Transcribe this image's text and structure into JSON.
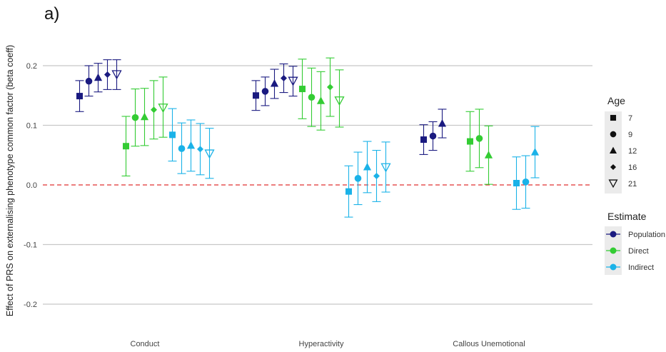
{
  "panel_label": "a)",
  "chart_data": {
    "type": "scatter",
    "title": "",
    "ylabel": "Effect of PRS on externalising phenotype common factor (beta coeff)",
    "xlabel": "",
    "categories": [
      "Conduct",
      "Hyperactivity",
      "Callous Unemotional"
    ],
    "ylim": [
      -0.22,
      0.25
    ],
    "yticks": [
      0.2,
      0.1,
      0.0,
      -0.1,
      -0.2
    ],
    "ytick_labels": [
      "0.2",
      "0.1",
      "0.0",
      "-0.1",
      "-0.2"
    ],
    "grid": "horizontal",
    "reference_line": {
      "y": 0.0,
      "color": "#e03030",
      "style": "dashed"
    },
    "legend_placement": "right",
    "ages": [
      "7",
      "9",
      "12",
      "16",
      "21"
    ],
    "age_shapes": [
      "square",
      "circle",
      "triangle",
      "diamond",
      "triangle-down-open"
    ],
    "legend": {
      "age_title": "Age",
      "estimate_title": "Estimate"
    },
    "series": [
      {
        "name": "Population",
        "color": "#1a1a80",
        "points": {
          "Conduct": [
            [
              0.149,
              0.123,
              0.175
            ],
            [
              0.174,
              0.149,
              0.2
            ],
            [
              0.18,
              0.156,
              0.204
            ],
            [
              0.185,
              0.16,
              0.21
            ],
            [
              0.185,
              0.16,
              0.21
            ]
          ],
          "Hyperactivity": [
            [
              0.15,
              0.125,
              0.175
            ],
            [
              0.157,
              0.133,
              0.181
            ],
            [
              0.17,
              0.145,
              0.194
            ],
            [
              0.179,
              0.155,
              0.203
            ],
            [
              0.174,
              0.149,
              0.199
            ]
          ],
          "Callous Unemotional": [
            [
              0.076,
              0.051,
              0.101
            ],
            [
              0.082,
              0.058,
              0.106
            ],
            [
              0.103,
              0.079,
              0.127
            ]
          ]
        }
      },
      {
        "name": "Direct",
        "color": "#33cc33",
        "points": {
          "Conduct": [
            [
              0.065,
              0.015,
              0.115
            ],
            [
              0.113,
              0.065,
              0.161
            ],
            [
              0.114,
              0.066,
              0.162
            ],
            [
              0.126,
              0.077,
              0.175
            ],
            [
              0.129,
              0.08,
              0.181
            ]
          ],
          "Hyperactivity": [
            [
              0.161,
              0.111,
              0.211
            ],
            [
              0.147,
              0.098,
              0.196
            ],
            [
              0.141,
              0.092,
              0.19
            ],
            [
              0.164,
              0.115,
              0.213
            ],
            [
              0.141,
              0.097,
              0.193
            ]
          ],
          "Callous Unemotional": [
            [
              0.073,
              0.023,
              0.123
            ],
            [
              0.078,
              0.029,
              0.127
            ],
            [
              0.05,
              0.001,
              0.099
            ]
          ]
        }
      },
      {
        "name": "Indirect",
        "color": "#1ab2e8",
        "points": {
          "Conduct": [
            [
              0.084,
              0.04,
              0.128
            ],
            [
              0.061,
              0.019,
              0.104
            ],
            [
              0.066,
              0.023,
              0.109
            ],
            [
              0.06,
              0.017,
              0.103
            ],
            [
              0.052,
              0.011,
              0.095
            ]
          ],
          "Hyperactivity": [
            [
              -0.011,
              -0.054,
              0.032
            ],
            [
              0.011,
              -0.033,
              0.055
            ],
            [
              0.03,
              -0.013,
              0.073
            ],
            [
              0.015,
              -0.028,
              0.058
            ],
            [
              0.029,
              -0.012,
              0.072
            ]
          ],
          "Callous Unemotional": [
            [
              0.003,
              -0.041,
              0.047
            ],
            [
              0.005,
              -0.039,
              0.049
            ],
            [
              0.055,
              0.012,
              0.098
            ]
          ]
        }
      }
    ]
  }
}
